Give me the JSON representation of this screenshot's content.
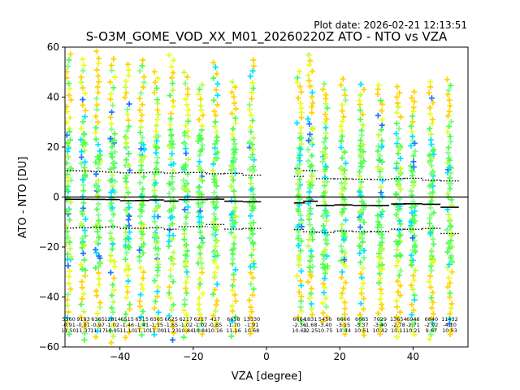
{
  "header": {
    "plot_date": "Plot date: 2026-02-21 12:13:51"
  },
  "chart_data": {
    "type": "scatter",
    "title": "S-O3M_GOME_VOD_XX_M01_20260220Z ATO - NTO vs VZA",
    "xlabel": "VZA [degree]",
    "ylabel": "ATO - NTO [DU]",
    "xlim": [
      -55,
      55
    ],
    "ylim": [
      -60,
      60
    ],
    "xticks": [
      -40,
      -20,
      0,
      20,
      40
    ],
    "yticks": [
      -60,
      -40,
      -20,
      0,
      20,
      40,
      60
    ],
    "grid": false,
    "zero_line": 0,
    "bins": [
      {
        "vza": -54,
        "count": "5360",
        "mean": "-0.91",
        "std": "11.50",
        "low": -55,
        "high": 57
      },
      {
        "vza": -50,
        "count": "9183",
        "mean": "-0.91",
        "std": "11.37",
        "low": -57,
        "high": 55
      },
      {
        "vza": -46,
        "count": "6365",
        "mean": "-0.97",
        "std": "11.17",
        "low": -56,
        "high": 58
      },
      {
        "vza": -42,
        "count": "12814",
        "mean": "-1.02",
        "std": "10.95",
        "low": -58,
        "high": 55
      },
      {
        "vza": -38,
        "count": "6515",
        "mean": "-1.46",
        "std": "11.10",
        "low": -56,
        "high": 53
      },
      {
        "vza": -34,
        "count": "6515",
        "mean": "-1.41",
        "std": "11.10",
        "low": -55,
        "high": 55
      },
      {
        "vza": -30,
        "count": "6565",
        "mean": "-1.15",
        "std": "11.09",
        "low": -55,
        "high": 50
      },
      {
        "vza": -26,
        "count": "6625",
        "mean": "-1.65",
        "std": "11.23",
        "low": -57,
        "high": 57
      },
      {
        "vza": -22,
        "count": "6217",
        "mean": "-1.02",
        "std": "10.84",
        "low": -56,
        "high": 50
      },
      {
        "vza": -18,
        "count": "6217",
        "mean": "-1.02",
        "std": "10.84",
        "low": -55,
        "high": 45
      },
      {
        "vza": -14,
        "count": "427",
        "mean": "-0.85",
        "std": "10.16",
        "low": -52,
        "high": 54
      },
      {
        "vza": -9,
        "count": "6658",
        "mean": "-1.70",
        "std": "11.16",
        "low": -56,
        "high": 46
      },
      {
        "vza": -4,
        "count": "13330",
        "mean": "-1.91",
        "std": "10.68",
        "low": -55,
        "high": 55
      },
      {
        "vza": 9,
        "count": "6664",
        "mean": "-2.36",
        "std": "10.63",
        "low": -50,
        "high": 50
      },
      {
        "vza": 12,
        "count": "1831",
        "mean": "-1.68",
        "std": "12.25",
        "low": -47,
        "high": 57
      },
      {
        "vza": 16,
        "count": "5456",
        "mean": "-3.40",
        "std": "10.75",
        "low": -50,
        "high": 45
      },
      {
        "vza": 21,
        "count": "6666",
        "mean": "-3.15",
        "std": "10.44",
        "low": -55,
        "high": 47
      },
      {
        "vza": 26,
        "count": "6665",
        "mean": "-3.37",
        "std": "10.51",
        "low": -55,
        "high": 45
      },
      {
        "vza": 31,
        "count": "7029",
        "mean": "-3.40",
        "std": "10.42",
        "low": -55,
        "high": 45
      },
      {
        "vza": 36,
        "count": "13654",
        "mean": "-2.78",
        "std": "10.11",
        "low": -56,
        "high": 44
      },
      {
        "vza": 40,
        "count": "6946",
        "mean": "-2.71",
        "std": "10.21",
        "low": -55,
        "high": 42
      },
      {
        "vza": 45,
        "count": "6840",
        "mean": "-2.92",
        "std": "9.67",
        "low": -57,
        "high": 46
      },
      {
        "vza": 50,
        "count": "11432",
        "mean": "-4.10",
        "std": "10.53",
        "low": -55,
        "high": 47
      }
    ],
    "point_colors": [
      "#4dff4d",
      "#7dff80",
      "#00e5ff",
      "#ffd400",
      "#c0ff3a",
      "#1f77ff",
      "#00ffff",
      "#e8ff1f"
    ],
    "line_color": "#000000"
  }
}
